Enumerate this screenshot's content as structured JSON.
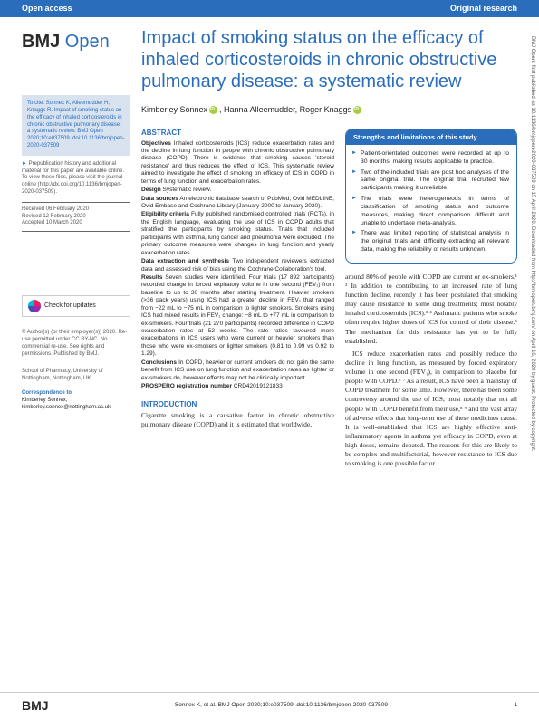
{
  "topbar": {
    "left": "Open access",
    "right": "Original research"
  },
  "journal": {
    "name_bold": "BMJ",
    "name_light": "Open"
  },
  "article": {
    "title": "Impact of smoking status on the efficacy of inhaled corticosteroids in chronic obstructive pulmonary disease: a systematic review",
    "authors_1": "Kimberley Sonnex",
    "authors_2": ", Hanna Alleemudder, Roger Knaggs"
  },
  "cite": "To cite: Sonnex K, Alleemudder H, Knaggs R. Impact of smoking status on the efficacy of inhaled corticosteroids in chronic obstructive pulmonary disease: a systematic review. BMJ Open 2020;10:e037509. doi:10.1136/bmjopen-2020-037509",
  "prepub": "Prepublication history and additional material for this paper are available online. To view these files, please visit the journal online (http://dx.doi.org/10.1136/bmjopen-2020-037509).",
  "dates": {
    "received": "Received 06 February 2020",
    "revised": "Revised 12 February 2020",
    "accepted": "Accepted 10 March 2020"
  },
  "check_updates": "Check for updates",
  "copyright": "© Author(s) (or their employer(s)) 2020. Re-use permitted under CC BY-NC. No commercial re-use. See rights and permissions. Published by BMJ.",
  "affiliation": "School of Pharmacy, University of Nottingham, Nottingham, UK",
  "correspondence": {
    "heading": "Correspondence to",
    "name": "Kimberley Sonnex;",
    "email": "kimberley.sonnex@nottingham.ac.uk"
  },
  "abstract_heading": "ABSTRACT",
  "abstract": {
    "objectives_label": "Objectives",
    "objectives": " Inhaled corticosteroids (ICS) reduce exacerbation rates and the decline in lung function in people with chronic obstructive pulmonary disease (COPD). There is evidence that smoking causes 'steroid resistance' and thus reduces the effect of ICS. This systematic review aimed to investigate the effect of smoking on efficacy of ICS in COPD in terms of lung function and exacerbation rates.",
    "design_label": "Design",
    "design": " Systematic review.",
    "datasources_label": "Data sources",
    "datasources": " An electronic database search of PubMed, Ovid MEDLINE, Ovid Embase and Cochrane Library (January 2000 to January 2020).",
    "eligibility_label": "Eligibility criteria",
    "eligibility": " Fully published randomised controlled trials (RCTs), in the English language, evaluating the use of ICS in COPD adults that stratified the participants by smoking status. Trials that included participants with asthma, lung cancer and pneumonia were excluded. The primary outcome measures were changes in lung function and yearly exacerbation rates.",
    "extraction_label": "Data extraction and synthesis",
    "extraction": " Two independent reviewers extracted data and assessed risk of bias using the Cochrane Collaboration's tool.",
    "results_label": "Results",
    "results": " Seven studies were identified. Four trials (17 892 participants) recorded change in forced expiratory volume in one second (FEV₁) from baseline to up to 30 months after starting treatment. Heavier smokers (>36 pack years) using ICS had a greater decline in FEV₁ that ranged from −22 mL to −75 mL in comparison to lighter smokers. Smokers using ICS had mixed results in FEV₁ change: −8 mL to +77 mL in comparison to ex-smokers. Four trials (21 270 participants) recorded difference in COPD exacerbation rates at 52 weeks. The rate ratios favoured more exacerbations in ICS users who were current or heavier smokers than those who were ex-smokers or lighter smokers (0.81 to 0.99 vs 0.92 to 1.29).",
    "conclusions_label": "Conclusions",
    "conclusions": " In COPD, heavier or current smokers do not gain the same benefit from ICS use on lung function and exacerbation rates as lighter or ex-smokers do, however effects may not be clinically important.",
    "prospero_label": "PROSPERO registration number",
    "prospero": " CRD42019121833"
  },
  "intro_heading": "INTRODUCTION",
  "intro_text": "Cigarette smoking is a causative factor in chronic obstructive pulmonary disease (COPD) and it is estimated that worldwide,",
  "strengths": {
    "heading": "Strengths and limitations of this study",
    "items": [
      "Patient-orientated outcomes were recorded at up to 30 months, making results applicable to practice.",
      "Two of the included trials are post hoc analyses of the same original trial. The original trial recruited few participants making it unreliable.",
      "The trials were heterogeneous in terms of classification of smoking status and outcome measures, making direct comparison difficult and unable to undertake meta-analysis.",
      "There was limited reporting of statistical analysis in the original trials and difficulty extracting all relevant data, making the reliability of results unknown."
    ]
  },
  "body": {
    "p1": "around 80% of people with COPD are current or ex-smokers.¹ ² In addition to contributing to an increased rate of lung function decline, recently it has been postulated that smoking may cause resistance to some drug treatments; most notably inhaled corticosteroids (ICS).³ ⁴ Asthmatic patients who smoke often require higher doses of ICS for control of their disease.⁵ The mechanism for this resistance has yet to be fully established.",
    "p2": "ICS reduce exacerbation rates and possibly reduce the decline in lung function, as measured by forced expiratory volume in one second (FEV₁), in comparison to placebo for people with COPD.⁶ ⁷ As a result, ICS have been a mainstay of COPD treatment for some time. However, there has been some controversy around the use of ICS; most notably that not all people with COPD benefit from their use,⁸ ⁹ and the vast array of adverse effects that long-term use of these medicines cause. It is well-established that ICS are highly effective anti-inflammatory agents in asthma yet efficacy in COPD, even at high doses, remains debated. The reasons for this are likely to be complex and multifactorial, however resistance to ICS due to smoking is one possible factor."
  },
  "footer": {
    "logo": "BMJ",
    "citation": "Sonnex K, et al. BMJ Open 2020;10:e037509. doi:10.1136/bmjopen-2020-037509",
    "page": "1"
  },
  "side": "BMJ Open: first published as 10.1136/bmjopen-2020-037509 on 15 April 2020. Downloaded from http://bmjopen.bmj.com/ on April 16, 2020 by guest. Protected by copyright."
}
